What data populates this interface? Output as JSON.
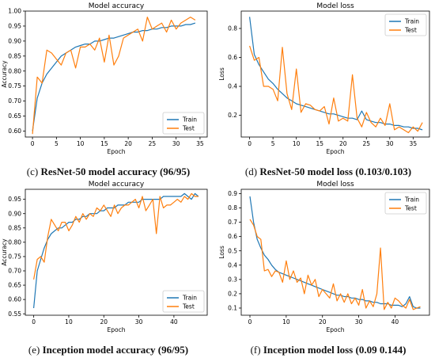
{
  "figure": {
    "panels": [
      {
        "caption": "(c) ResNet-50 model accuracy (96/95)",
        "chart_data": {
          "type": "line",
          "title": "Model accuracy",
          "xlabel": "Epoch",
          "ylabel": "Accuracy",
          "xlim": [
            -1.5,
            36.5
          ],
          "ylim": [
            0.58,
            1.0
          ],
          "xticks": [
            0,
            5,
            10,
            15,
            20,
            25,
            30,
            35
          ],
          "yticks": [
            0.6,
            0.65,
            0.7,
            0.75,
            0.8,
            0.85,
            0.9,
            0.95,
            1.0
          ],
          "ytick_labels": [
            "0.60",
            "0.65",
            "0.70",
            "0.75",
            "0.80",
            "0.85",
            "0.90",
            "0.95",
            "1.00"
          ],
          "legend_position": "bottom-right",
          "series": [
            {
              "name": "Train",
              "color": "#1f77b4",
              "x": [
                0,
                1,
                2,
                3,
                4,
                5,
                6,
                7,
                8,
                9,
                10,
                11,
                12,
                13,
                14,
                15,
                16,
                17,
                18,
                19,
                20,
                21,
                22,
                23,
                24,
                25,
                26,
                27,
                28,
                29,
                30,
                31,
                32,
                33,
                34
              ],
              "values": [
                0.6,
                0.71,
                0.76,
                0.79,
                0.81,
                0.83,
                0.85,
                0.86,
                0.87,
                0.88,
                0.885,
                0.89,
                0.89,
                0.9,
                0.9,
                0.905,
                0.91,
                0.91,
                0.915,
                0.92,
                0.925,
                0.93,
                0.93,
                0.935,
                0.935,
                0.94,
                0.94,
                0.945,
                0.945,
                0.95,
                0.95,
                0.95,
                0.955,
                0.955,
                0.96
              ]
            },
            {
              "name": "Test",
              "color": "#ff7f0e",
              "x": [
                0,
                1,
                2,
                3,
                4,
                5,
                6,
                7,
                8,
                9,
                10,
                11,
                12,
                13,
                14,
                15,
                16,
                17,
                18,
                19,
                20,
                21,
                22,
                23,
                24,
                25,
                26,
                27,
                28,
                29,
                30,
                31,
                32,
                33,
                34
              ],
              "values": [
                0.59,
                0.78,
                0.76,
                0.87,
                0.86,
                0.84,
                0.82,
                0.86,
                0.87,
                0.81,
                0.88,
                0.88,
                0.89,
                0.87,
                0.91,
                0.83,
                0.92,
                0.82,
                0.85,
                0.91,
                0.92,
                0.93,
                0.94,
                0.9,
                0.98,
                0.94,
                0.95,
                0.96,
                0.93,
                0.97,
                0.94,
                0.96,
                0.97,
                0.98,
                0.97
              ]
            }
          ]
        }
      },
      {
        "caption": "(d) ResNet-50 model loss (0.103/0.103)",
        "chart_data": {
          "type": "line",
          "title": "Model loss",
          "xlabel": "Epoch",
          "ylabel": "Loss",
          "xlim": [
            -1.8,
            38.5
          ],
          "ylim": [
            0.05,
            0.92
          ],
          "xticks": [
            0,
            5,
            10,
            15,
            20,
            25,
            30,
            35
          ],
          "yticks": [
            0.2,
            0.4,
            0.6,
            0.8
          ],
          "ytick_labels": [
            "0.2",
            "0.4",
            "0.6",
            "0.8"
          ],
          "legend_position": "top-right",
          "series": [
            {
              "name": "Train",
              "color": "#1f77b4",
              "x": [
                0,
                1,
                2,
                3,
                4,
                5,
                6,
                7,
                8,
                9,
                10,
                11,
                12,
                13,
                14,
                15,
                16,
                17,
                18,
                19,
                20,
                21,
                22,
                23,
                24,
                25,
                26,
                27,
                28,
                29,
                30,
                31,
                32,
                33,
                34,
                35,
                36,
                37
              ],
              "values": [
                0.88,
                0.62,
                0.55,
                0.5,
                0.45,
                0.42,
                0.38,
                0.35,
                0.32,
                0.3,
                0.28,
                0.27,
                0.26,
                0.25,
                0.24,
                0.23,
                0.22,
                0.21,
                0.21,
                0.2,
                0.19,
                0.18,
                0.18,
                0.17,
                0.23,
                0.17,
                0.16,
                0.15,
                0.15,
                0.14,
                0.14,
                0.13,
                0.13,
                0.12,
                0.12,
                0.11,
                0.11,
                0.1
              ]
            },
            {
              "name": "Test",
              "color": "#ff7f0e",
              "x": [
                0,
                1,
                2,
                3,
                4,
                5,
                6,
                7,
                8,
                9,
                10,
                11,
                12,
                13,
                14,
                15,
                16,
                17,
                18,
                19,
                20,
                21,
                22,
                23,
                24,
                25,
                26,
                27,
                28,
                29,
                30,
                31,
                32,
                33,
                34,
                35,
                36,
                37
              ],
              "values": [
                0.68,
                0.58,
                0.6,
                0.4,
                0.4,
                0.38,
                0.3,
                0.67,
                0.35,
                0.24,
                0.52,
                0.22,
                0.28,
                0.27,
                0.24,
                0.23,
                0.26,
                0.14,
                0.32,
                0.16,
                0.18,
                0.16,
                0.48,
                0.18,
                0.12,
                0.22,
                0.15,
                0.12,
                0.18,
                0.13,
                0.28,
                0.1,
                0.12,
                0.1,
                0.08,
                0.12,
                0.09,
                0.15
              ]
            }
          ]
        }
      },
      {
        "caption": "(e) Inception model accuracy (96/95)",
        "chart_data": {
          "type": "line",
          "title": "Model accuracy",
          "xlabel": "Epoch",
          "ylabel": "Accuracy",
          "xlim": [
            -2.4,
            49.5
          ],
          "ylim": [
            0.545,
            0.985
          ],
          "xticks": [
            0,
            10,
            20,
            30,
            40
          ],
          "yticks": [
            0.55,
            0.6,
            0.65,
            0.7,
            0.75,
            0.8,
            0.85,
            0.9,
            0.95
          ],
          "ytick_labels": [
            "0.55",
            "0.60",
            "0.65",
            "0.70",
            "0.75",
            "0.80",
            "0.85",
            "0.90",
            "0.95"
          ],
          "legend_position": "bottom-right",
          "series": [
            {
              "name": "Train",
              "color": "#1f77b4",
              "x": [
                0,
                1,
                2,
                3,
                4,
                5,
                6,
                7,
                8,
                9,
                10,
                11,
                12,
                13,
                14,
                15,
                16,
                17,
                18,
                19,
                20,
                21,
                22,
                23,
                24,
                25,
                26,
                27,
                28,
                29,
                30,
                31,
                32,
                33,
                34,
                35,
                36,
                37,
                38,
                39,
                40,
                41,
                42,
                43,
                44,
                45,
                46,
                47
              ],
              "values": [
                0.57,
                0.7,
                0.74,
                0.78,
                0.81,
                0.83,
                0.84,
                0.85,
                0.85,
                0.86,
                0.87,
                0.87,
                0.88,
                0.88,
                0.89,
                0.89,
                0.9,
                0.9,
                0.9,
                0.91,
                0.91,
                0.92,
                0.92,
                0.92,
                0.93,
                0.93,
                0.93,
                0.94,
                0.94,
                0.94,
                0.94,
                0.95,
                0.95,
                0.95,
                0.95,
                0.95,
                0.95,
                0.96,
                0.96,
                0.96,
                0.96,
                0.96,
                0.96,
                0.97,
                0.96,
                0.95,
                0.97,
                0.96
              ]
            },
            {
              "name": "Test",
              "color": "#ff7f0e",
              "x": [
                0,
                1,
                2,
                3,
                4,
                5,
                6,
                7,
                8,
                9,
                10,
                11,
                12,
                13,
                14,
                15,
                16,
                17,
                18,
                19,
                20,
                21,
                22,
                23,
                24,
                25,
                26,
                27,
                28,
                29,
                30,
                31,
                32,
                33,
                34,
                35,
                36,
                37,
                38,
                39,
                40,
                41,
                42,
                43,
                44,
                45,
                46,
                47
              ],
              "values": [
                0.67,
                0.74,
                0.75,
                0.73,
                0.82,
                0.88,
                0.86,
                0.84,
                0.87,
                0.87,
                0.84,
                0.86,
                0.89,
                0.87,
                0.9,
                0.88,
                0.9,
                0.89,
                0.92,
                0.91,
                0.93,
                0.91,
                0.89,
                0.93,
                0.9,
                0.92,
                0.93,
                0.93,
                0.94,
                0.95,
                0.92,
                0.96,
                0.91,
                0.93,
                0.95,
                0.83,
                0.96,
                0.92,
                0.93,
                0.93,
                0.94,
                0.95,
                0.94,
                0.96,
                0.95,
                0.97,
                0.96,
                0.96
              ]
            }
          ]
        }
      },
      {
        "caption": "(f) Inception model loss (0.09 0.144)",
        "chart_data": {
          "type": "line",
          "title": "Model loss",
          "xlabel": "Epoch",
          "ylabel": "Loss",
          "xlim": [
            -2.4,
            49.5
          ],
          "ylim": [
            0.05,
            0.93
          ],
          "xticks": [
            0,
            10,
            20,
            30,
            40
          ],
          "yticks": [
            0.1,
            0.2,
            0.3,
            0.4,
            0.5,
            0.6,
            0.7,
            0.8,
            0.9
          ],
          "ytick_labels": [
            "0.1",
            "0.2",
            "0.3",
            "0.4",
            "0.5",
            "0.6",
            "0.7",
            "0.8",
            "0.9"
          ],
          "legend_position": "top-right",
          "series": [
            {
              "name": "Train",
              "color": "#1f77b4",
              "x": [
                0,
                1,
                2,
                3,
                4,
                5,
                6,
                7,
                8,
                9,
                10,
                11,
                12,
                13,
                14,
                15,
                16,
                17,
                18,
                19,
                20,
                21,
                22,
                23,
                24,
                25,
                26,
                27,
                28,
                29,
                30,
                31,
                32,
                33,
                34,
                35,
                36,
                37,
                38,
                39,
                40,
                41,
                42,
                43,
                44,
                45,
                46,
                47
              ],
              "values": [
                0.88,
                0.7,
                0.58,
                0.52,
                0.47,
                0.44,
                0.4,
                0.37,
                0.35,
                0.34,
                0.33,
                0.32,
                0.31,
                0.3,
                0.29,
                0.28,
                0.27,
                0.26,
                0.25,
                0.24,
                0.23,
                0.22,
                0.21,
                0.2,
                0.19,
                0.19,
                0.18,
                0.18,
                0.17,
                0.17,
                0.16,
                0.16,
                0.15,
                0.15,
                0.14,
                0.14,
                0.13,
                0.13,
                0.13,
                0.12,
                0.12,
                0.12,
                0.11,
                0.13,
                0.18,
                0.11,
                0.1,
                0.1
              ]
            },
            {
              "name": "Test",
              "color": "#ff7f0e",
              "x": [
                0,
                1,
                2,
                3,
                4,
                5,
                6,
                7,
                8,
                9,
                10,
                11,
                12,
                13,
                14,
                15,
                16,
                17,
                18,
                19,
                20,
                21,
                22,
                23,
                24,
                25,
                26,
                27,
                28,
                29,
                30,
                31,
                32,
                33,
                34,
                35,
                36,
                37,
                38,
                39,
                40,
                41,
                42,
                43,
                44,
                45,
                46,
                47
              ],
              "values": [
                0.72,
                0.68,
                0.6,
                0.58,
                0.36,
                0.37,
                0.32,
                0.36,
                0.35,
                0.28,
                0.43,
                0.3,
                0.36,
                0.28,
                0.31,
                0.2,
                0.33,
                0.26,
                0.3,
                0.18,
                0.23,
                0.2,
                0.17,
                0.27,
                0.15,
                0.2,
                0.14,
                0.2,
                0.13,
                0.17,
                0.12,
                0.23,
                0.1,
                0.15,
                0.11,
                0.2,
                0.52,
                0.09,
                0.14,
                0.1,
                0.17,
                0.15,
                0.12,
                0.1,
                0.16,
                0.09,
                0.1,
                0.11
              ]
            }
          ]
        }
      }
    ]
  }
}
